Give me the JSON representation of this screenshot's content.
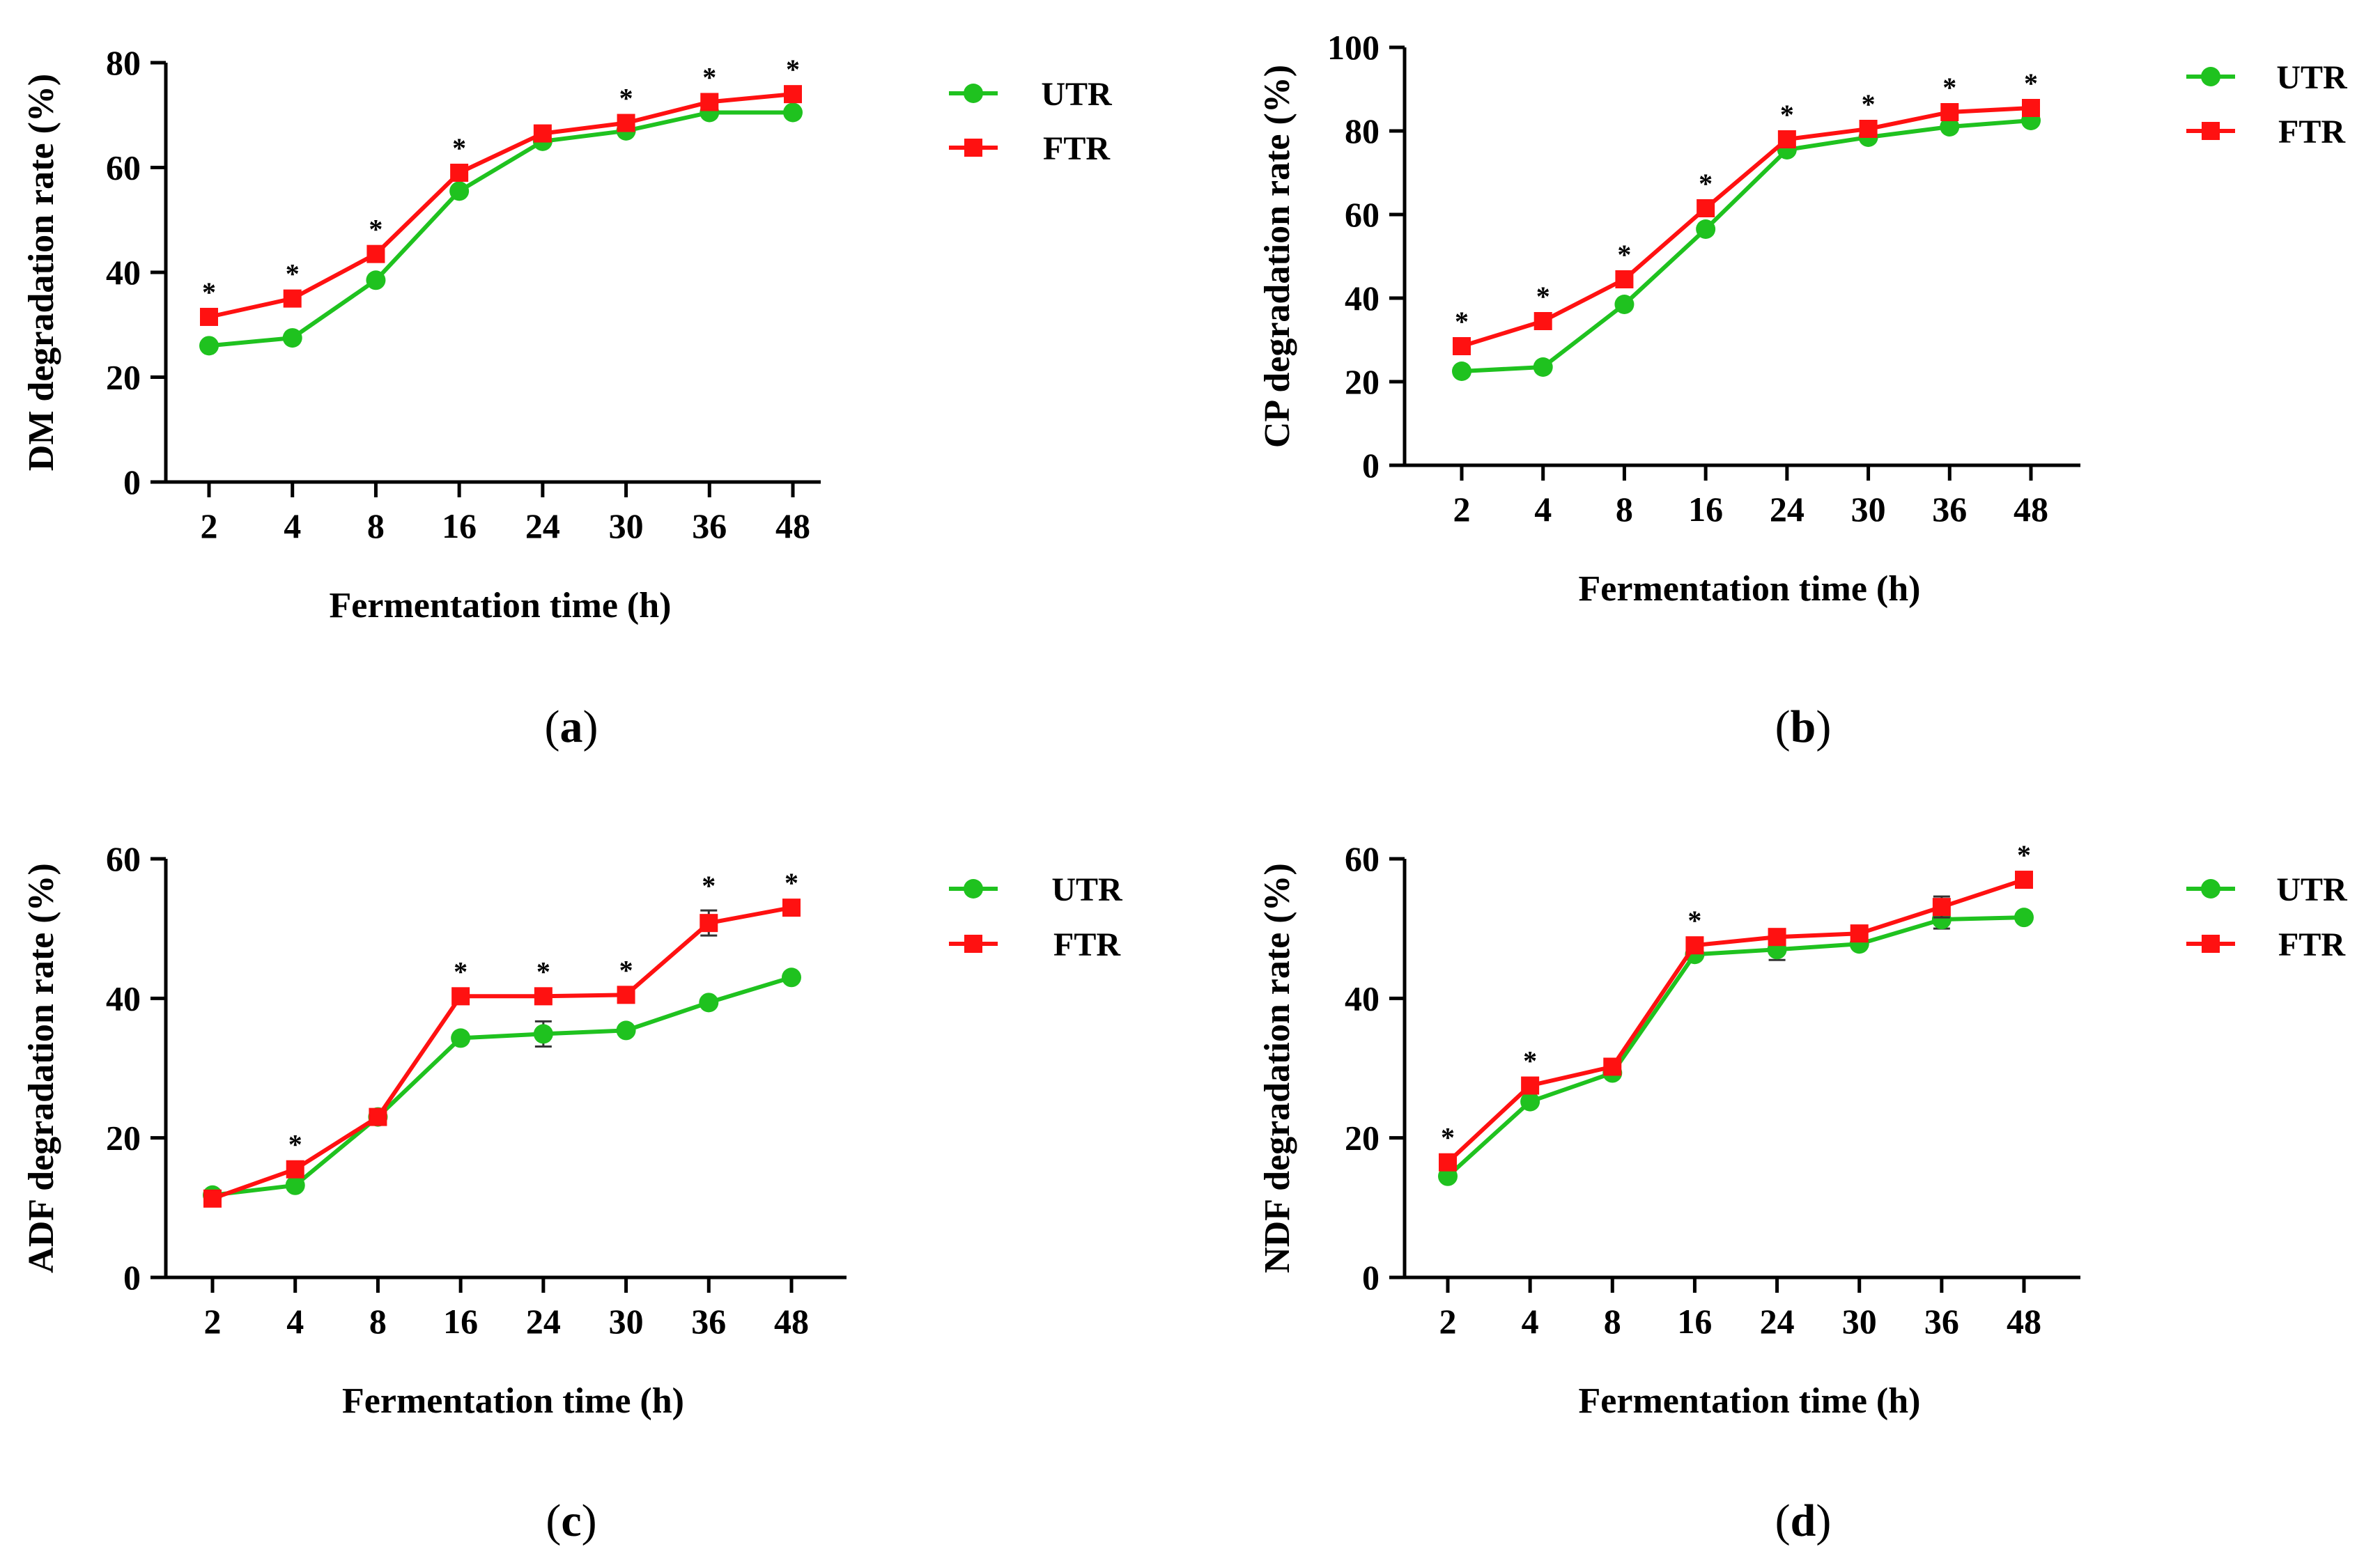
{
  "chart_data": [
    {
      "type": "line",
      "panel": "a",
      "caption_label": "a",
      "categories": [
        "2",
        "4",
        "8",
        "16",
        "24",
        "30",
        "36",
        "48"
      ],
      "series": [
        {
          "name": "UTR",
          "color": "#1fc21f",
          "marker": "circle",
          "values": [
            26,
            27.5,
            38.5,
            55.5,
            65,
            67,
            70.5,
            70.5
          ],
          "errors": [
            0,
            0,
            0,
            0,
            0,
            0,
            0,
            0
          ]
        },
        {
          "name": "FTR",
          "color": "#ff1111",
          "marker": "square",
          "values": [
            31.5,
            35,
            43.5,
            59,
            66.5,
            68.5,
            72.5,
            74
          ],
          "errors": [
            0,
            0,
            0,
            0,
            0,
            0,
            0,
            0
          ]
        }
      ],
      "significance": [
        true,
        true,
        true,
        true,
        false,
        true,
        true,
        true
      ],
      "significance_symbol": "*",
      "title": "",
      "xlabel": "Fermentation time (h)",
      "ylabel": "DM degradation rate (%)",
      "ylim": [
        0,
        80
      ],
      "yticks": [
        0,
        20,
        40,
        60,
        80
      ],
      "legend": [
        "UTR",
        "FTR"
      ],
      "legend_position": "right",
      "grid": false
    },
    {
      "type": "line",
      "panel": "b",
      "caption_label": "b",
      "categories": [
        "2",
        "4",
        "8",
        "16",
        "24",
        "30",
        "36",
        "48"
      ],
      "series": [
        {
          "name": "UTR",
          "color": "#1fc21f",
          "marker": "circle",
          "values": [
            22.5,
            23.5,
            38.5,
            56.5,
            75.5,
            78.5,
            81,
            82.5
          ],
          "errors": [
            0,
            0,
            0,
            0,
            0,
            0,
            0,
            0
          ]
        },
        {
          "name": "FTR",
          "color": "#ff1111",
          "marker": "square",
          "values": [
            28.5,
            34.5,
            44.5,
            61.5,
            78,
            80.5,
            84.5,
            85.5
          ],
          "errors": [
            0,
            0,
            0,
            0,
            0,
            0,
            0,
            0
          ]
        }
      ],
      "significance": [
        true,
        true,
        true,
        true,
        true,
        true,
        true,
        true
      ],
      "significance_symbol": "*",
      "title": "",
      "xlabel": "Fermentation time (h)",
      "ylabel": "CP degradation rate (%)",
      "ylim": [
        0,
        100
      ],
      "yticks": [
        0,
        20,
        40,
        60,
        80,
        100
      ],
      "legend": [
        "UTR",
        "FTR"
      ],
      "legend_position": "right",
      "grid": false
    },
    {
      "type": "line",
      "panel": "c",
      "caption_label": "c",
      "categories": [
        "2",
        "4",
        "8",
        "16",
        "24",
        "30",
        "36",
        "48"
      ],
      "series": [
        {
          "name": "UTR",
          "color": "#1fc21f",
          "marker": "circle",
          "values": [
            11.8,
            13.2,
            23,
            34.3,
            34.9,
            35.4,
            39.4,
            43
          ],
          "errors": [
            0,
            0,
            0,
            0,
            1.8,
            0,
            0,
            0
          ]
        },
        {
          "name": "FTR",
          "color": "#ff1111",
          "marker": "square",
          "values": [
            11.3,
            15.5,
            23,
            40.3,
            40.3,
            40.5,
            50.8,
            53
          ],
          "errors": [
            0,
            0,
            0,
            0,
            0,
            0,
            1.8,
            0
          ]
        }
      ],
      "significance": [
        false,
        true,
        false,
        true,
        true,
        true,
        true,
        true
      ],
      "significance_symbol": "*",
      "title": "",
      "xlabel": "Fermentation time (h)",
      "ylabel": "ADF degradation rate (%)",
      "ylim": [
        0,
        60
      ],
      "yticks": [
        0,
        20,
        40,
        60
      ],
      "legend": [
        "UTR",
        "FTR"
      ],
      "legend_position": "right",
      "grid": false
    },
    {
      "type": "line",
      "panel": "d",
      "caption_label": "d",
      "categories": [
        "2",
        "4",
        "8",
        "16",
        "24",
        "30",
        "36",
        "48"
      ],
      "series": [
        {
          "name": "UTR",
          "color": "#1fc21f",
          "marker": "circle",
          "values": [
            14.5,
            25.2,
            29.3,
            46.3,
            47,
            47.8,
            51.3,
            51.6
          ],
          "errors": [
            0,
            0,
            0,
            0,
            1.5,
            0,
            1.3,
            0
          ]
        },
        {
          "name": "FTR",
          "color": "#ff1111",
          "marker": "square",
          "values": [
            16.5,
            27.5,
            30.2,
            47.6,
            48.8,
            49.3,
            53.1,
            57
          ],
          "errors": [
            0,
            0,
            0,
            0,
            1.0,
            0,
            1.5,
            0
          ]
        }
      ],
      "significance": [
        true,
        true,
        false,
        true,
        false,
        false,
        false,
        true
      ],
      "significance_symbol": "*",
      "title": "",
      "xlabel": "Fermentation time (h)",
      "ylabel": "NDF degradation rate (%)",
      "ylim": [
        0,
        60
      ],
      "yticks": [
        0,
        20,
        40,
        60
      ],
      "legend": [
        "UTR",
        "FTR"
      ],
      "legend_position": "right",
      "grid": false
    }
  ]
}
